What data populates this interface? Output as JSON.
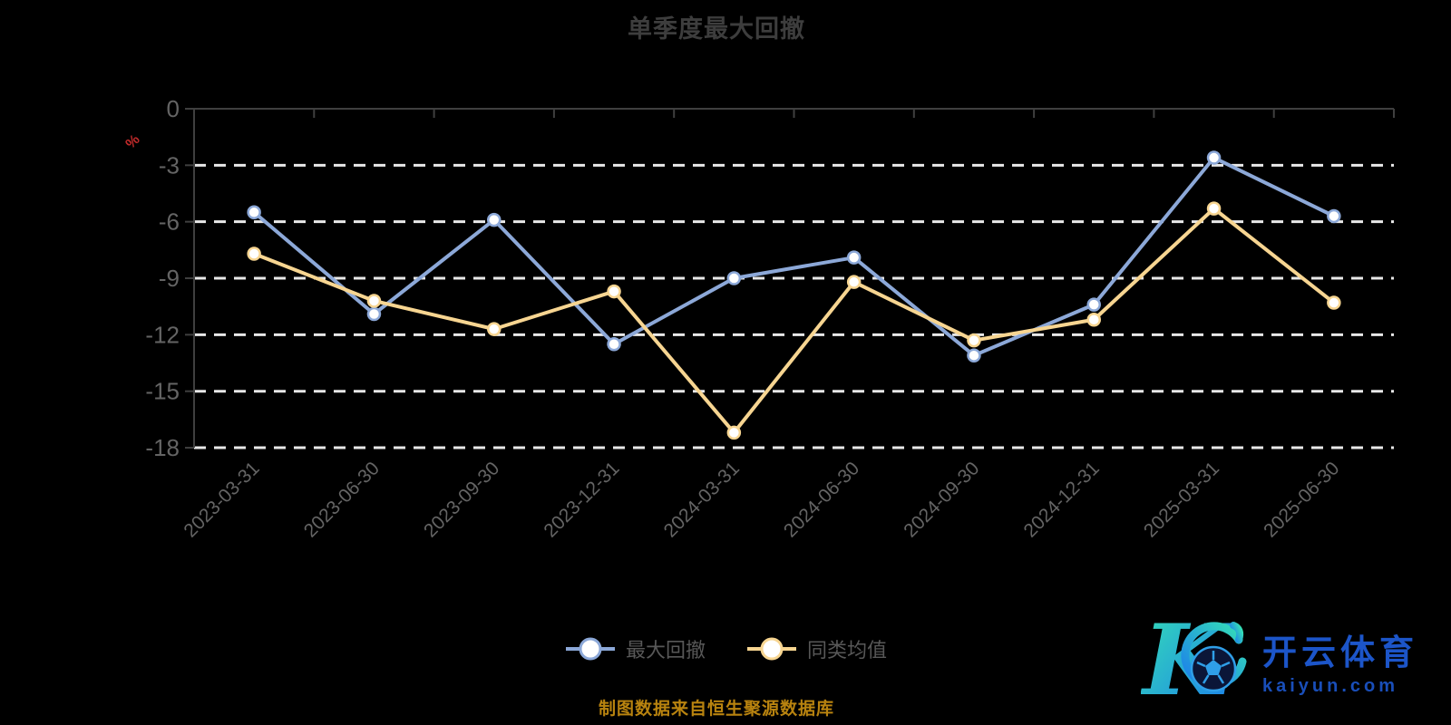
{
  "chart_data": {
    "type": "line",
    "title": "单季度最大回撤",
    "y_axis": {
      "unit": "%",
      "ticks": [
        "0",
        "-3",
        "-6",
        "-9",
        "-12",
        "-15",
        "-18"
      ],
      "ylim": [
        -18,
        0
      ],
      "grid": "horizontal dashed white lines"
    },
    "categories": [
      "2023-03-31",
      "2023-06-30",
      "2023-09-30",
      "2023-12-31",
      "2024-03-31",
      "2024-06-30",
      "2024-09-30",
      "2024-12-31",
      "2025-03-31",
      "2025-06-30"
    ],
    "series": [
      {
        "name": "最大回撤",
        "color": "#8CA8D8",
        "values": [
          -5.5,
          -10.9,
          -5.9,
          -12.5,
          -9.0,
          -7.9,
          -13.1,
          -10.4,
          -2.6,
          -5.7
        ]
      },
      {
        "name": "同类均值",
        "color": "#F7D591",
        "values": [
          -7.7,
          -10.2,
          -11.7,
          -9.7,
          -17.2,
          -9.2,
          -12.3,
          -11.2,
          -5.3,
          -10.3
        ]
      }
    ],
    "legend_position": "bottom-center",
    "marker": "white-filled circle with colored ring"
  },
  "footer": {
    "source_note": "制图数据来自恒生聚源数据库"
  },
  "watermark": {
    "logo_letter": "K",
    "brand_cn": "开云体育",
    "brand_url": "kaiyun.com"
  }
}
